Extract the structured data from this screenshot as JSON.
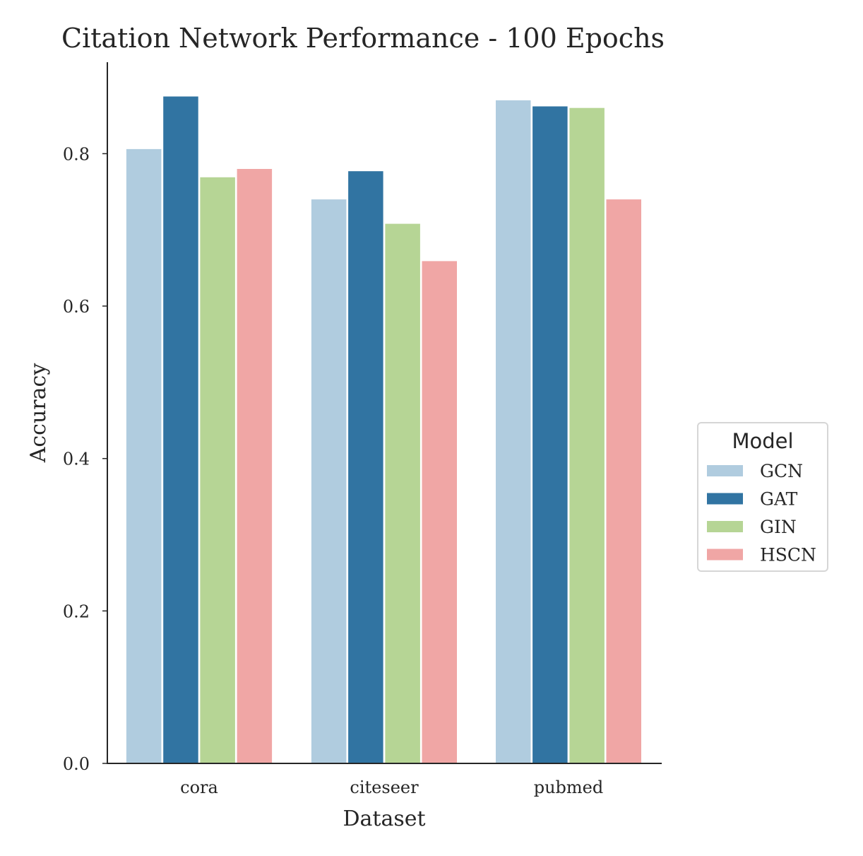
{
  "chart_data": {
    "type": "bar",
    "title": "Citation Network Performance - 100 Epochs",
    "xlabel": "Dataset",
    "ylabel": "Accuracy",
    "categories": [
      "cora",
      "citeseer",
      "pubmed"
    ],
    "ylim": [
      0,
      0.92
    ],
    "yticks": [
      "0.0",
      "0.2",
      "0.4",
      "0.6",
      "0.8"
    ],
    "grid": false,
    "legend": {
      "title": "Model",
      "placement": "center-right, outside plot"
    },
    "series": [
      {
        "name": "GCN",
        "color": "#b0ccdf",
        "values": [
          0.806,
          0.74,
          0.87
        ]
      },
      {
        "name": "GAT",
        "color": "#3174a2",
        "values": [
          0.875,
          0.777,
          0.862
        ]
      },
      {
        "name": "GIN",
        "color": "#b6d595",
        "values": [
          0.769,
          0.708,
          0.86
        ]
      },
      {
        "name": "HSCN",
        "color": "#f0a6a5",
        "values": [
          0.78,
          0.659,
          0.74
        ]
      }
    ]
  }
}
